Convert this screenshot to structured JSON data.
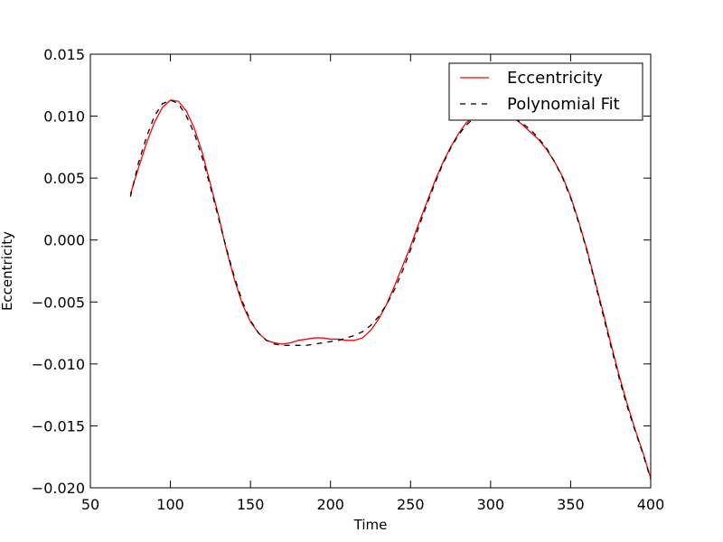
{
  "chart_data": {
    "type": "line",
    "title": "",
    "xlabel": "Time",
    "ylabel": "Eccentricity",
    "xlim": [
      50,
      400
    ],
    "ylim": [
      -0.02,
      0.015
    ],
    "grid": false,
    "legend_position": "top-right",
    "x_ticks": [
      "50",
      "100",
      "150",
      "200",
      "250",
      "300",
      "350",
      "400"
    ],
    "y_ticks": [
      "0.015",
      "0.010",
      "0.005",
      "0.000",
      "−0.005",
      "−0.010",
      "−0.015",
      "−0.020"
    ],
    "series": [
      {
        "name": "Eccentricity",
        "color": "#ff0000",
        "dash": "solid",
        "x": [
          75,
          80,
          85,
          90,
          95,
          100,
          105,
          110,
          115,
          120,
          125,
          130,
          135,
          140,
          145,
          150,
          155,
          160,
          165,
          170,
          175,
          180,
          185,
          190,
          195,
          200,
          205,
          210,
          215,
          220,
          225,
          230,
          235,
          240,
          245,
          250,
          255,
          260,
          265,
          270,
          275,
          280,
          285,
          290,
          295,
          300,
          305,
          310,
          315,
          320,
          325,
          330,
          335,
          340,
          345,
          350,
          355,
          360,
          365,
          370,
          375,
          380,
          385,
          390,
          395,
          400
        ],
        "y": [
          0.0037,
          0.0058,
          0.0078,
          0.0095,
          0.0107,
          0.0113,
          0.0112,
          0.0104,
          0.009,
          0.007,
          0.0045,
          0.002,
          -0.0008,
          -0.0032,
          -0.0052,
          -0.0066,
          -0.0075,
          -0.0081,
          -0.0083,
          -0.0084,
          -0.0083,
          -0.0081,
          -0.008,
          -0.0079,
          -0.0079,
          -0.008,
          -0.008,
          -0.0081,
          -0.0081,
          -0.0079,
          -0.0073,
          -0.0064,
          -0.0052,
          -0.0037,
          -0.0021,
          -0.0005,
          0.0013,
          0.003,
          0.0047,
          0.0062,
          0.0075,
          0.0086,
          0.0095,
          0.01,
          0.0103,
          0.0105,
          0.0104,
          0.0102,
          0.0098,
          0.0093,
          0.0087,
          0.0081,
          0.0073,
          0.0063,
          0.0051,
          0.0035,
          0.0015,
          -0.0007,
          -0.0032,
          -0.0057,
          -0.0083,
          -0.0108,
          -0.0131,
          -0.0152,
          -0.0171,
          -0.0192
        ]
      },
      {
        "name": "Polynomial Fit",
        "color": "#000000",
        "dash": "dashed",
        "x": [
          75,
          80,
          85,
          90,
          95,
          100,
          105,
          110,
          115,
          120,
          125,
          130,
          135,
          140,
          145,
          150,
          155,
          160,
          165,
          170,
          175,
          180,
          185,
          190,
          195,
          200,
          205,
          210,
          215,
          220,
          225,
          230,
          235,
          240,
          245,
          250,
          255,
          260,
          265,
          270,
          275,
          280,
          285,
          290,
          295,
          300,
          305,
          310,
          315,
          320,
          325,
          330,
          335,
          340,
          345,
          350,
          355,
          360,
          365,
          370,
          375,
          380,
          385,
          390,
          395,
          400
        ],
        "y": [
          0.0035,
          0.0062,
          0.0083,
          0.01,
          0.011,
          0.0113,
          0.011,
          0.01,
          0.0086,
          0.0066,
          0.0043,
          0.0018,
          -0.0007,
          -0.003,
          -0.005,
          -0.0065,
          -0.0075,
          -0.0081,
          -0.0084,
          -0.0085,
          -0.0085,
          -0.0085,
          -0.0085,
          -0.0084,
          -0.0083,
          -0.0082,
          -0.0081,
          -0.0079,
          -0.0077,
          -0.0074,
          -0.0069,
          -0.0062,
          -0.0052,
          -0.004,
          -0.0025,
          -0.0008,
          0.001,
          0.0028,
          0.0045,
          0.0061,
          0.0074,
          0.0085,
          0.0093,
          0.0099,
          0.0103,
          0.0104,
          0.0104,
          0.0102,
          0.0098,
          0.0094,
          0.0089,
          0.0082,
          0.0074,
          0.0063,
          0.005,
          0.0034,
          0.0014,
          -0.0008,
          -0.0033,
          -0.0059,
          -0.0085,
          -0.011,
          -0.0133,
          -0.0153,
          -0.0172,
          -0.0193
        ]
      }
    ]
  }
}
